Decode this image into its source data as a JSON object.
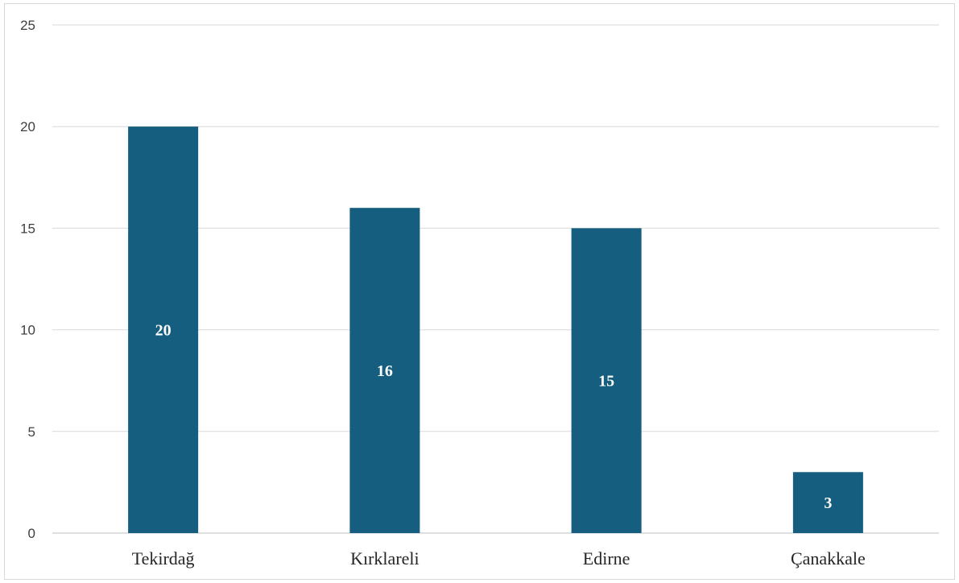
{
  "chart_data": {
    "type": "bar",
    "categories": [
      "Tekirdağ",
      "Kırklareli",
      "Edirne",
      "Çanakkale"
    ],
    "values": [
      20,
      16,
      15,
      3
    ],
    "title": "",
    "xlabel": "",
    "ylabel": "",
    "ylim": [
      0,
      25
    ],
    "yticks": [
      0,
      5,
      10,
      15,
      20,
      25
    ],
    "grid": true,
    "legend": "none",
    "data_labels": true,
    "colors": {
      "bar": "#165e7f",
      "label": "#ffffff"
    }
  }
}
